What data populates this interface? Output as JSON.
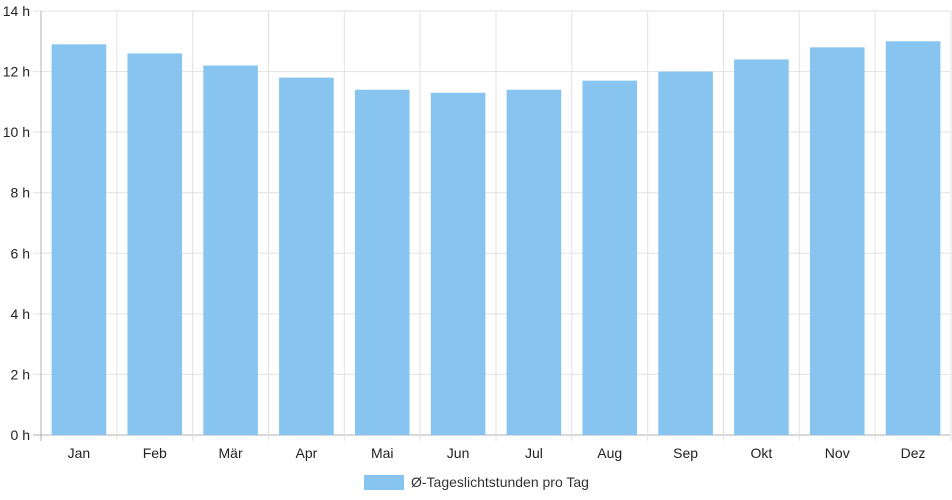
{
  "chart_data": {
    "type": "bar",
    "categories": [
      "Jan",
      "Feb",
      "Mär",
      "Apr",
      "Mai",
      "Jun",
      "Jul",
      "Aug",
      "Sep",
      "Okt",
      "Nov",
      "Dez"
    ],
    "series": [
      {
        "name": "Ø-Tageslichtstunden pro Tag",
        "values": [
          12.9,
          12.6,
          12.2,
          11.8,
          11.4,
          11.3,
          11.4,
          11.7,
          12.0,
          12.4,
          12.8,
          13.0
        ],
        "color": "#87c5f0"
      }
    ],
    "y_ticks": [
      "0 h",
      "2 h",
      "4 h",
      "6 h",
      "8 h",
      "10 h",
      "12 h",
      "14 h"
    ],
    "ylim": [
      0,
      14
    ],
    "ystep": 2,
    "grid": true,
    "legend_position": "bottom-center"
  }
}
